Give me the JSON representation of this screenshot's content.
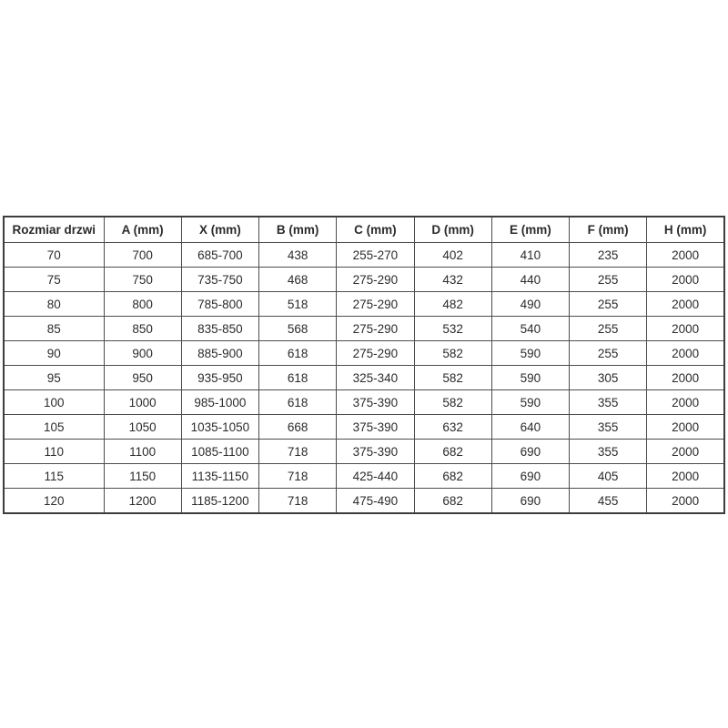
{
  "page": {
    "background": "#ffffff"
  },
  "styles": {
    "outer_border_color": "#3c3c3c",
    "inner_border_color": "#4d4d4d",
    "text_color": "#2b2b2b",
    "header_bg": "#ffffff"
  },
  "chart_data": {
    "type": "table",
    "columns": [
      "Rozmiar drzwi",
      "A (mm)",
      "X (mm)",
      "B (mm)",
      "C (mm)",
      "D (mm)",
      "E (mm)",
      "F (mm)",
      "H (mm)"
    ],
    "rows": [
      [
        "70",
        "700",
        "685-700",
        "438",
        "255-270",
        "402",
        "410",
        "235",
        "2000"
      ],
      [
        "75",
        "750",
        "735-750",
        "468",
        "275-290",
        "432",
        "440",
        "255",
        "2000"
      ],
      [
        "80",
        "800",
        "785-800",
        "518",
        "275-290",
        "482",
        "490",
        "255",
        "2000"
      ],
      [
        "85",
        "850",
        "835-850",
        "568",
        "275-290",
        "532",
        "540",
        "255",
        "2000"
      ],
      [
        "90",
        "900",
        "885-900",
        "618",
        "275-290",
        "582",
        "590",
        "255",
        "2000"
      ],
      [
        "95",
        "950",
        "935-950",
        "618",
        "325-340",
        "582",
        "590",
        "305",
        "2000"
      ],
      [
        "100",
        "1000",
        "985-1000",
        "618",
        "375-390",
        "582",
        "590",
        "355",
        "2000"
      ],
      [
        "105",
        "1050",
        "1035-1050",
        "668",
        "375-390",
        "632",
        "640",
        "355",
        "2000"
      ],
      [
        "110",
        "1100",
        "1085-1100",
        "718",
        "375-390",
        "682",
        "690",
        "355",
        "2000"
      ],
      [
        "115",
        "1150",
        "1135-1150",
        "718",
        "425-440",
        "682",
        "690",
        "405",
        "2000"
      ],
      [
        "120",
        "1200",
        "1185-1200",
        "718",
        "475-490",
        "682",
        "690",
        "455",
        "2000"
      ]
    ]
  }
}
